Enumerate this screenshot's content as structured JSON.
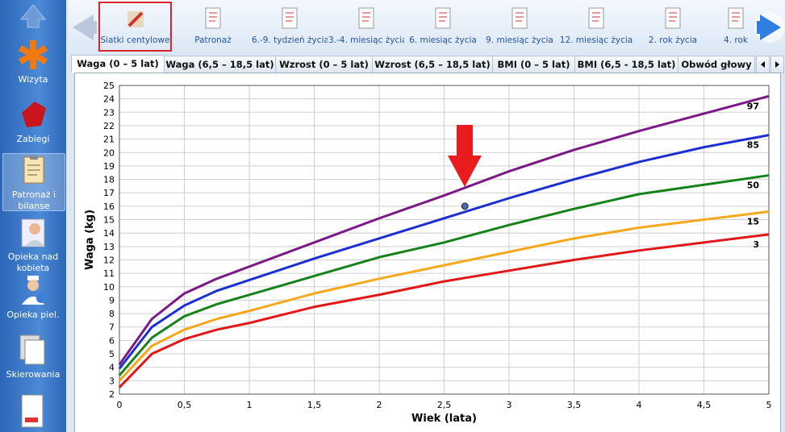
{
  "sidebar": {
    "items": [
      {
        "label": "Wizyta"
      },
      {
        "label": "Zabiegi"
      },
      {
        "label": "Patronaż i bilanse"
      },
      {
        "label": "Opieka nad kobieta"
      },
      {
        "label": "Opieka piel."
      },
      {
        "label": "Skierowania"
      }
    ]
  },
  "toolbar": {
    "items": [
      {
        "label": "Siatki centylowe"
      },
      {
        "label": "Patronaż"
      },
      {
        "label": "6.-9. tydzień życia"
      },
      {
        "label": "3.-4. miesiąc życia"
      },
      {
        "label": "6. miesiąc życia"
      },
      {
        "label": "9. miesiąc życia"
      },
      {
        "label": "12. miesiąc życia"
      },
      {
        "label": "2. rok życia"
      },
      {
        "label": "4. rok"
      }
    ]
  },
  "tabs": {
    "items": [
      {
        "label": "Waga (0 – 5 lat)"
      },
      {
        "label": "Waga (6,5 – 18,5 lat)"
      },
      {
        "label": "Wzrost (0 – 5 lat)"
      },
      {
        "label": "Wzrost (6,5 – 18,5 lat)"
      },
      {
        "label": "BMI (0 – 5 lat)"
      },
      {
        "label": "BMI (6,5 - 18,5 lat)"
      },
      {
        "label": "Obwód głowy"
      }
    ]
  },
  "chart_data": {
    "type": "line",
    "x_label": "Wiek (lata)",
    "y_label": "Waga (kg)",
    "x": [
      0,
      0.25,
      0.5,
      0.75,
      1,
      1.5,
      2,
      2.5,
      3,
      3.5,
      4,
      4.5,
      5
    ],
    "series": [
      {
        "name": "97",
        "color": "#7b1a86",
        "values": [
          4.2,
          7.6,
          9.5,
          10.6,
          11.5,
          13.3,
          15.1,
          16.8,
          18.6,
          20.2,
          21.6,
          22.9,
          24.2
        ]
      },
      {
        "name": "85",
        "color": "#1c2fd0",
        "values": [
          3.9,
          7.0,
          8.6,
          9.7,
          10.5,
          12.1,
          13.6,
          15.1,
          16.6,
          18.0,
          19.3,
          20.4,
          21.3
        ]
      },
      {
        "name": "50",
        "color": "#16821a",
        "values": [
          3.4,
          6.2,
          7.8,
          8.7,
          9.4,
          10.8,
          12.2,
          13.3,
          14.6,
          15.8,
          16.9,
          17.6,
          18.3
        ]
      },
      {
        "name": "15",
        "color": "#f5a81c",
        "values": [
          3.0,
          5.6,
          6.8,
          7.6,
          8.2,
          9.5,
          10.6,
          11.6,
          12.6,
          13.6,
          14.4,
          15.0,
          15.6
        ]
      },
      {
        "name": "3",
        "color": "#e01818",
        "values": [
          2.5,
          5.0,
          6.1,
          6.8,
          7.3,
          8.5,
          9.4,
          10.4,
          11.2,
          12.0,
          12.7,
          13.3,
          13.9
        ]
      }
    ],
    "points": [
      {
        "x": 2.66,
        "y": 16,
        "color": "#4a6aa8"
      }
    ],
    "xlim": [
      0,
      5
    ],
    "xticks": [
      0,
      {
        "value": 0.5,
        "label": "0,5"
      },
      1,
      {
        "value": 1.5,
        "label": "1,5"
      },
      2,
      {
        "value": 2.5,
        "label": "2,5"
      },
      3,
      {
        "value": 3.5,
        "label": "3,5"
      },
      4,
      {
        "value": 4.5,
        "label": "4,5"
      },
      5
    ],
    "ylim": [
      2,
      25
    ],
    "yticks": [
      2,
      3,
      4,
      5,
      6,
      7,
      8,
      9,
      10,
      11,
      12,
      13,
      14,
      15,
      16,
      17,
      18,
      19,
      20,
      21,
      22,
      23,
      24,
      25
    ],
    "grid": true
  }
}
